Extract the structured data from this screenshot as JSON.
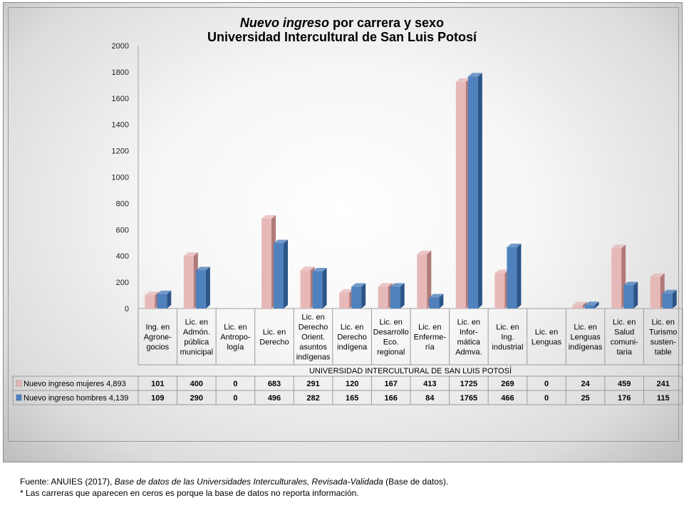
{
  "title": {
    "italic": "Nuevo ingreso",
    "rest": " por carrera y sexo",
    "line2": "Universidad Intercultural de San Luis Potosí"
  },
  "chart_data": {
    "type": "bar",
    "title": "Nuevo ingreso por carrera y sexo Universidad Intercultural de San Luis Potosí",
    "xlabel": "UNIVERSIDAD INTERCULTURAL DE SAN LUIS POTOSÍ",
    "ylabel": "",
    "ylim": [
      0,
      2000
    ],
    "yticks": [
      0,
      200,
      400,
      600,
      800,
      1000,
      1200,
      1400,
      1600,
      1800,
      2000
    ],
    "grid": false,
    "legend": "data-table",
    "categories": [
      "Ing. en Agrone-gocios",
      "Lic. en Admón. pública municipal",
      "Lic. en Antropo-logía",
      "Lic. en Derecho",
      "Lic. en Derecho Orient. asuntos indígenas",
      "Lic. en Derecho indígena",
      "Lic. en Desarrollo Eco. regional",
      "Lic. en Enferme-ría",
      "Lic. en Infor-mática Admva.",
      "Lic. en Ing. industrial",
      "Lic. en Lenguas",
      "Lic. en Lenguas indígenas",
      "Lic. en Salud comuni-taria",
      "Lic. en Turismo susten-table"
    ],
    "category_lines": [
      [
        "Ing. en",
        "Agrone-",
        "gocios"
      ],
      [
        "Lic. en",
        "Admón.",
        "pública",
        "municipal"
      ],
      [
        "Lic. en",
        "Antropo-",
        "logía"
      ],
      [
        "Lic. en",
        "Derecho"
      ],
      [
        "Lic. en",
        "Derecho",
        "Orient.",
        "asuntos",
        "indígenas"
      ],
      [
        "Lic. en",
        "Derecho",
        "indígena"
      ],
      [
        "Lic. en",
        "Desarrollo",
        "Eco.",
        "regional"
      ],
      [
        "Lic. en",
        "Enferme-",
        "ría"
      ],
      [
        "Lic. en",
        "Infor-",
        "mática",
        "Admva."
      ],
      [
        "Lic. en",
        "Ing.",
        "industrial"
      ],
      [
        "Lic. en",
        "Lenguas"
      ],
      [
        "Lic. en",
        "Lenguas",
        "indígenas"
      ],
      [
        "Lic. en",
        "Salud",
        "comuni-",
        "taria"
      ],
      [
        "Lic. en",
        "Turismo",
        "susten-",
        "table"
      ]
    ],
    "series": [
      {
        "name": "Nuevo ingreso mujeres 4,893",
        "color": "#e6b9b8",
        "dark": "#b07a79",
        "values": [
          101,
          400,
          0,
          683,
          291,
          120,
          167,
          413,
          1725,
          269,
          0,
          24,
          459,
          241
        ]
      },
      {
        "name": "Nuevo ingreso hombres 4,139",
        "color": "#4f81bd",
        "dark": "#2c5587",
        "values": [
          109,
          290,
          0,
          496,
          282,
          165,
          166,
          84,
          1765,
          466,
          0,
          25,
          176,
          115
        ]
      }
    ]
  },
  "footnotes": {
    "source_prefix": "Fuente: ANUIES (2017), ",
    "source_italic": "Base de datos de las Universidades  Interculturales, Revisada-Validada",
    "source_suffix": "  (Base de datos).",
    "note": "* Las carreras que aparecen en ceros es porque  la base de datos no reporta información."
  }
}
